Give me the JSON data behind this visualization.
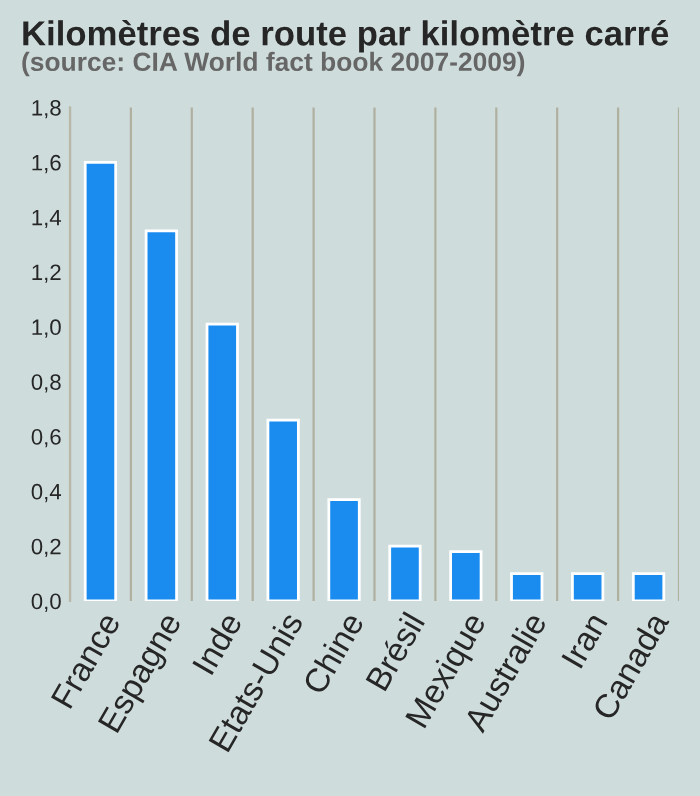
{
  "chart_data": {
    "type": "bar",
    "title": "Kilomètres de route par kilomètre carré",
    "subtitle": "(source: CIA World fact book 2007-2009)",
    "categories": [
      "France",
      "Espagne",
      "Inde",
      "Etats-Unis",
      "Chine",
      "Brésil",
      "Mexique",
      "Australie",
      "Iran",
      "Canada"
    ],
    "values": [
      1.6,
      1.35,
      1.01,
      0.66,
      0.37,
      0.2,
      0.18,
      0.1,
      0.1,
      0.1
    ],
    "color": "#1a8cf0",
    "ylim": [
      0,
      1.8
    ],
    "yticks": [
      {
        "value": 0,
        "label": "0,0"
      },
      {
        "value": 0.2,
        "label": "0,2"
      },
      {
        "value": 0.4,
        "label": "0,4"
      },
      {
        "value": 0.6,
        "label": "0,6"
      },
      {
        "value": 0.8,
        "label": "0,8"
      },
      {
        "value": 1.0,
        "label": "1,0"
      },
      {
        "value": 1.2,
        "label": "1,2"
      },
      {
        "value": 1.4,
        "label": "1,4"
      },
      {
        "value": 1.6,
        "label": "1,6"
      },
      {
        "value": 1.8,
        "label": "1,8"
      }
    ],
    "grid": "x",
    "legend": false
  }
}
